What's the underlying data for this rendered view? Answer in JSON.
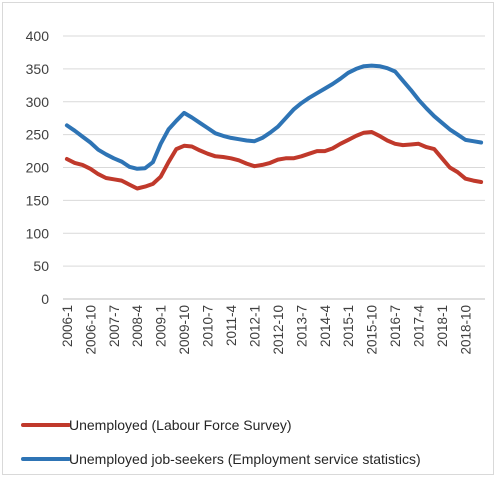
{
  "chart_data": {
    "type": "line",
    "title": "",
    "xlabel": "",
    "ylabel": "",
    "ylim": [
      0,
      400
    ],
    "y_ticks": [
      "0",
      "50",
      "100",
      "150",
      "200",
      "250",
      "300",
      "350",
      "400"
    ],
    "x_ticks": [
      "2006-1",
      "2006-10",
      "2007-7",
      "2008-4",
      "2009-1",
      "2009-10",
      "2010-7",
      "2011-4",
      "2012-1",
      "2012-10",
      "2013-7",
      "2014-4",
      "2015-1",
      "2015-10",
      "2016-7",
      "2017-4",
      "2018-1",
      "2018-10"
    ],
    "grid": "horizontal",
    "legend_position": "bottom",
    "x": [
      "2006-1",
      "2006-4",
      "2006-7",
      "2006-10",
      "2007-1",
      "2007-4",
      "2007-7",
      "2007-10",
      "2008-1",
      "2008-4",
      "2008-7",
      "2008-10",
      "2009-1",
      "2009-4",
      "2009-7",
      "2009-10",
      "2010-1",
      "2010-4",
      "2010-7",
      "2010-10",
      "2011-1",
      "2011-4",
      "2011-7",
      "2011-10",
      "2012-1",
      "2012-4",
      "2012-7",
      "2012-10",
      "2013-1",
      "2013-4",
      "2013-7",
      "2013-10",
      "2014-1",
      "2014-4",
      "2014-7",
      "2014-10",
      "2015-1",
      "2015-4",
      "2015-7",
      "2015-10",
      "2016-1",
      "2016-4",
      "2016-7",
      "2016-10",
      "2017-1",
      "2017-4",
      "2017-7",
      "2017-10",
      "2018-1",
      "2018-4",
      "2018-7",
      "2018-10",
      "2019-1",
      "2019-4"
    ],
    "series": [
      {
        "name": "Unemployed  (Labour Force Survey)",
        "color": "#c0392b",
        "values": [
          213,
          207,
          204,
          198,
          190,
          184,
          182,
          180,
          174,
          168,
          171,
          175,
          186,
          208,
          228,
          233,
          232,
          226,
          221,
          217,
          216,
          214,
          211,
          206,
          202,
          204,
          207,
          212,
          214,
          214,
          217,
          221,
          225,
          225,
          229,
          236,
          242,
          248,
          253,
          254,
          248,
          241,
          236,
          234,
          235,
          236,
          231,
          228,
          214,
          200,
          193,
          183,
          180,
          178
        ]
      },
      {
        "name": "Unemployed job-seekers  (Employment service statistics)",
        "color": "#2e74b5",
        "values": [
          264,
          256,
          247,
          238,
          227,
          220,
          214,
          209,
          201,
          198,
          199,
          208,
          236,
          258,
          271,
          283,
          276,
          268,
          260,
          252,
          248,
          245,
          243,
          241,
          240,
          245,
          253,
          262,
          275,
          288,
          298,
          306,
          313,
          320,
          327,
          335,
          344,
          350,
          354,
          355,
          354,
          351,
          346,
          332,
          318,
          303,
          290,
          278,
          268,
          258,
          250,
          242,
          240,
          238
        ]
      }
    ]
  }
}
